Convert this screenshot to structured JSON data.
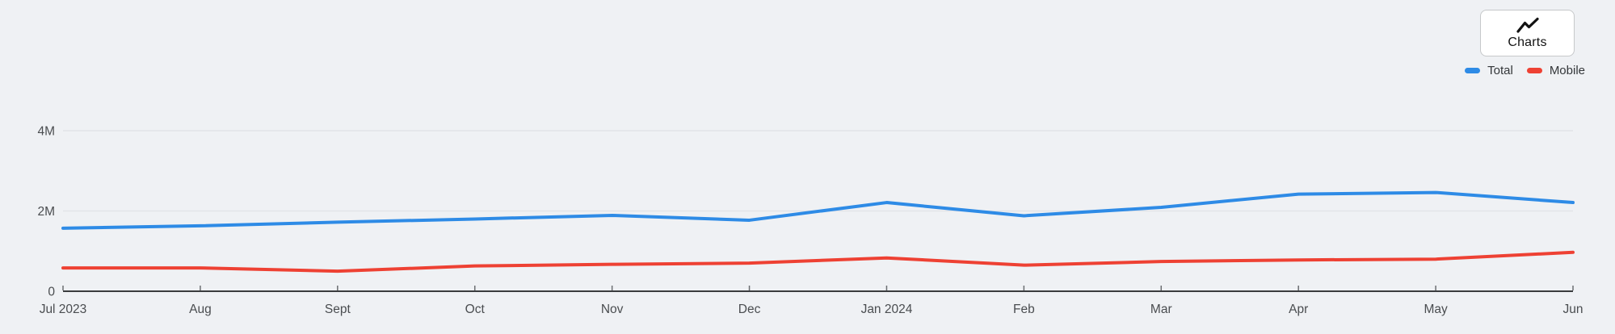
{
  "app": {
    "background_color": "#eff1f4"
  },
  "toolbar": {
    "charts_button_label": "Charts",
    "charts_button_icon": "trend-line-icon"
  },
  "chart_data": {
    "type": "line",
    "title": "",
    "xlabel": "",
    "ylabel": "",
    "categories": [
      "Jul 2023",
      "Aug",
      "Sept",
      "Oct",
      "Nov",
      "Dec",
      "Jan 2024",
      "Feb",
      "Mar",
      "Apr",
      "May",
      "Jun"
    ],
    "series": [
      {
        "name": "Total",
        "color": "#2e8be6",
        "values_in_millions": [
          1.57,
          1.63,
          1.72,
          1.8,
          1.89,
          1.77,
          2.21,
          1.88,
          2.09,
          2.42,
          2.46,
          2.21
        ]
      },
      {
        "name": "Mobile",
        "color": "#ee4133",
        "values_in_millions": [
          0.58,
          0.58,
          0.5,
          0.63,
          0.67,
          0.7,
          0.83,
          0.65,
          0.74,
          0.78,
          0.8,
          0.97
        ]
      }
    ],
    "ylim_in_millions": [
      0,
      4
    ],
    "y_ticks": [
      {
        "value_in_millions": 0,
        "label": "0"
      },
      {
        "value_in_millions": 2,
        "label": "2M"
      },
      {
        "value_in_millions": 4,
        "label": "4M"
      }
    ],
    "grid": "horizontal",
    "legend_position": "top-right",
    "colors": {
      "grid_line": "#e2e4e8",
      "axis_line": "#3a3c3e",
      "tick_mark": "#6b6e71",
      "axis_label": "#4a4d50"
    }
  }
}
